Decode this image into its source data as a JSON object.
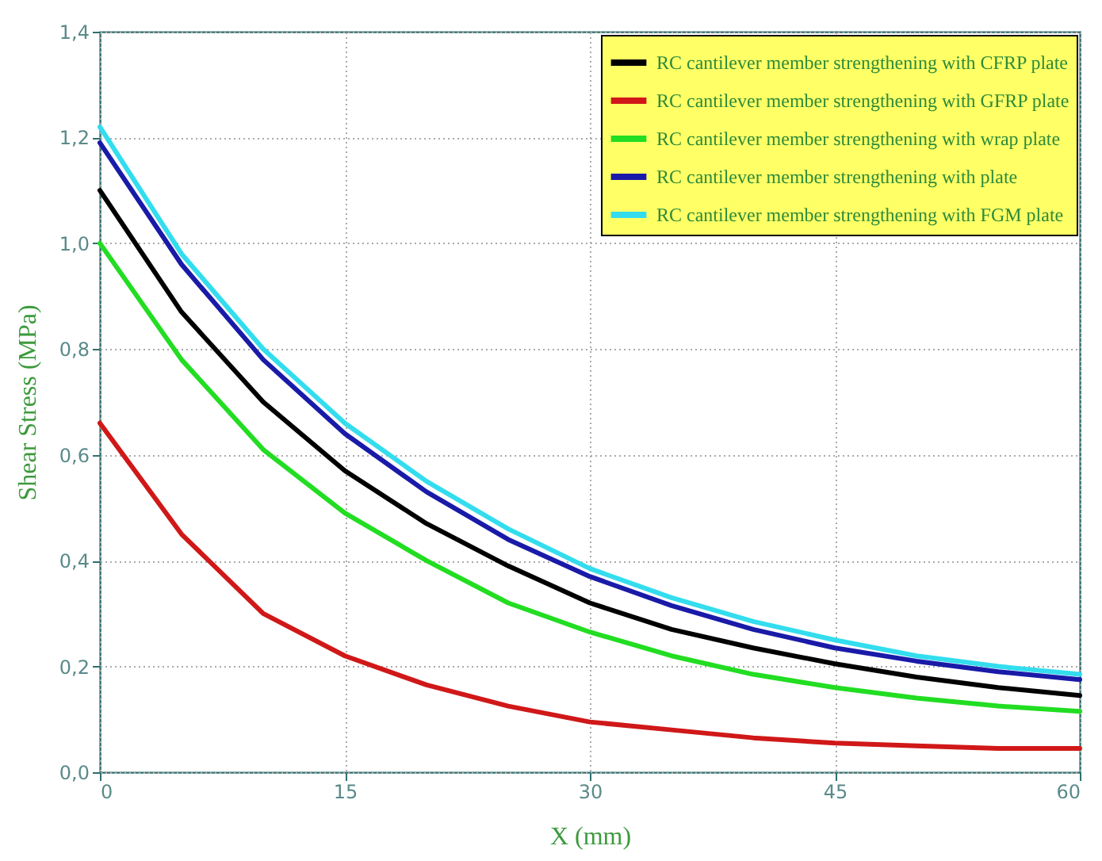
{
  "chart_data": {
    "type": "line",
    "xlabel": "X (mm)",
    "ylabel": "Shear Stress (MPa)",
    "x": [
      0,
      5,
      10,
      15,
      20,
      25,
      30,
      35,
      40,
      45,
      50,
      55,
      60
    ],
    "series": [
      {
        "name": "RC cantilever member strengthening with CFRP plate",
        "color": "#000000",
        "values": [
          1.1,
          0.87,
          0.7,
          0.57,
          0.47,
          0.39,
          0.32,
          0.27,
          0.235,
          0.205,
          0.18,
          0.16,
          0.145
        ]
      },
      {
        "name": "RC cantilever member strengthening with GFRP plate",
        "color": "#d01818",
        "values": [
          0.66,
          0.45,
          0.3,
          0.22,
          0.165,
          0.125,
          0.095,
          0.08,
          0.065,
          0.055,
          0.05,
          0.045,
          0.045
        ]
      },
      {
        "name": "RC cantilever member strengthening with wrap plate",
        "color": "#22dd22",
        "values": [
          1.0,
          0.78,
          0.61,
          0.49,
          0.4,
          0.32,
          0.265,
          0.22,
          0.185,
          0.16,
          0.14,
          0.125,
          0.115
        ]
      },
      {
        "name": "RC cantilever member strengthening with plate",
        "color": "#1a1aa8",
        "values": [
          1.19,
          0.96,
          0.78,
          0.64,
          0.53,
          0.44,
          0.37,
          0.315,
          0.27,
          0.235,
          0.21,
          0.19,
          0.175
        ]
      },
      {
        "name": "RC cantilever member strengthening with FGM plate",
        "color": "#33ddee",
        "values": [
          1.22,
          0.98,
          0.8,
          0.66,
          0.55,
          0.46,
          0.385,
          0.33,
          0.285,
          0.25,
          0.22,
          0.2,
          0.185
        ]
      }
    ],
    "xlim": [
      0,
      60
    ],
    "xticks": [
      0,
      15,
      30,
      45,
      60
    ],
    "ylim": [
      0,
      1.4
    ],
    "yticks": [
      {
        "value": 0,
        "label": "0,0"
      },
      {
        "value": 0.2,
        "label": "0,2"
      },
      {
        "value": 0.4,
        "label": "0,4"
      },
      {
        "value": 0.6,
        "label": "0,6"
      },
      {
        "value": 0.8,
        "label": "0,8"
      },
      {
        "value": 1.0,
        "label": "1,0"
      },
      {
        "value": 1.2,
        "label": "1,2"
      },
      {
        "value": 1.4,
        "label": "1,4"
      }
    ],
    "grid": true,
    "legend": "top right",
    "marker": "none",
    "line_style": "solid"
  }
}
